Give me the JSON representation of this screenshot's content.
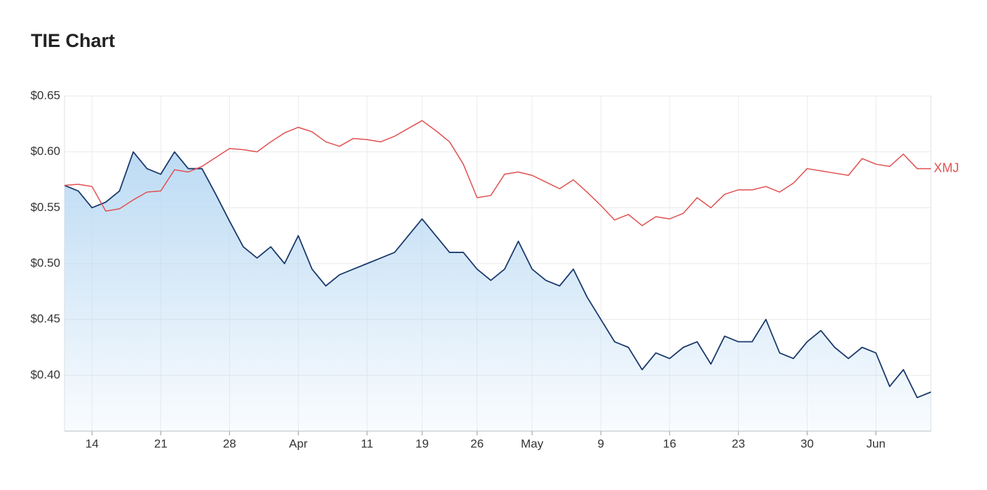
{
  "chart_data": {
    "type": "line",
    "title": "TIE Chart",
    "categories": [
      null,
      null,
      "14",
      null,
      null,
      null,
      null,
      "21",
      null,
      null,
      null,
      null,
      "28",
      null,
      null,
      null,
      null,
      "Apr",
      null,
      null,
      null,
      null,
      "11",
      null,
      null,
      null,
      "19",
      null,
      null,
      null,
      "26",
      null,
      null,
      null,
      "May",
      null,
      null,
      null,
      null,
      "9",
      null,
      null,
      null,
      null,
      "16",
      null,
      null,
      null,
      null,
      "23",
      null,
      null,
      null,
      null,
      "30",
      null,
      null,
      null,
      null,
      "Jun",
      null,
      null,
      null,
      null
    ],
    "series": [
      {
        "color": "#1b3a6b",
        "area": "#b9d9f3",
        "values": [
          0.57,
          0.565,
          0.55,
          0.555,
          0.565,
          0.6,
          0.585,
          0.58,
          0.6,
          0.585,
          0.585,
          0.562,
          0.538,
          0.515,
          0.505,
          0.515,
          0.5,
          0.525,
          0.495,
          0.48,
          0.49,
          0.495,
          0.5,
          0.505,
          0.51,
          0.525,
          0.54,
          0.525,
          0.51,
          0.51,
          0.495,
          0.485,
          0.495,
          0.52,
          0.495,
          0.485,
          0.48,
          0.495,
          0.47,
          0.45,
          0.43,
          0.425,
          0.405,
          0.42,
          0.415,
          0.425,
          0.43,
          0.41,
          0.435,
          0.43,
          0.43,
          0.45,
          0.42,
          0.415,
          0.43,
          0.44,
          0.425,
          0.415,
          0.425,
          0.42,
          0.39,
          0.405,
          0.38,
          0.385
        ]
      },
      {
        "name": "XMJ",
        "color": "#e05050",
        "values": [
          0.57,
          0.571,
          0.569,
          0.547,
          0.549,
          0.557,
          0.564,
          0.565,
          0.584,
          0.582,
          0.587,
          0.595,
          0.603,
          0.602,
          0.6,
          0.609,
          0.617,
          0.622,
          0.618,
          0.609,
          0.605,
          0.612,
          0.611,
          0.609,
          0.614,
          0.621,
          0.628,
          0.619,
          0.609,
          0.589,
          0.559,
          0.561,
          0.58,
          0.582,
          0.579,
          0.573,
          0.567,
          0.575,
          0.564,
          0.552,
          0.539,
          0.544,
          0.534,
          0.542,
          0.54,
          0.545,
          0.559,
          0.55,
          0.562,
          0.566,
          0.566,
          0.569,
          0.564,
          0.572,
          0.585,
          0.583,
          0.581,
          0.579,
          0.594,
          0.589,
          0.587,
          0.598,
          0.585,
          0.585
        ]
      }
    ],
    "ylim": [
      0.35,
      0.65
    ],
    "yticks": [
      {
        "value": 0.4,
        "label": "$0.40"
      },
      {
        "value": 0.45,
        "label": "$0.45"
      },
      {
        "value": 0.5,
        "label": "$0.50"
      },
      {
        "value": 0.55,
        "label": "$0.55"
      },
      {
        "value": 0.6,
        "label": "$0.60"
      },
      {
        "value": 0.65,
        "label": "$0.65"
      }
    ],
    "grid": true
  }
}
